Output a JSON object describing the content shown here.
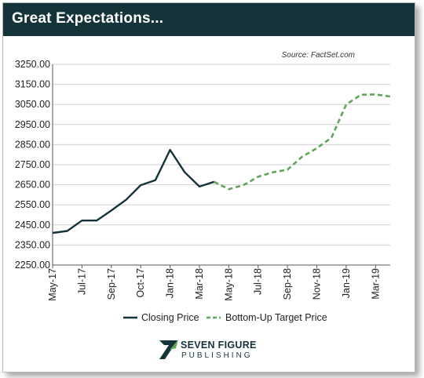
{
  "title": "Great Expectations...",
  "source": "Source: FactSet.com",
  "brand": {
    "line1": "SEVEN FIGURE",
    "line2": "PUBLISHING"
  },
  "colors": {
    "header_bg": "#15343a",
    "closing": "#15343a",
    "target": "#5fa55a"
  },
  "chart_data": {
    "type": "line",
    "ylim": [
      2250,
      3250
    ],
    "y_ticks": [
      "3250.00",
      "3150.00",
      "3050.00",
      "2950.00",
      "2850.00",
      "2750.00",
      "2650.00",
      "2550.00",
      "2450.00",
      "2350.00",
      "2250.00"
    ],
    "x_tick_labels": [
      "May-17",
      "Jul-17",
      "Sep-17",
      "Oct-17",
      "Jan-18",
      "Mar-18",
      "May-18",
      "Jul-18",
      "Sep-18",
      "Nov-18",
      "Jan-19",
      "Mar-19"
    ],
    "x_range": [
      "2017-05",
      "2019-04"
    ],
    "grid": true,
    "legend_position": "bottom",
    "series": [
      {
        "name": "Closing Price",
        "style": "solid",
        "color": "#15343a",
        "x": [
          "2017-05",
          "2017-06",
          "2017-07",
          "2017-08",
          "2017-09",
          "2017-10",
          "2017-11",
          "2017-12",
          "2018-01",
          "2018-02",
          "2018-03",
          "2018-04"
        ],
        "y": [
          2410,
          2420,
          2472,
          2472,
          2522,
          2575,
          2648,
          2673,
          2824,
          2712,
          2641,
          2665
        ]
      },
      {
        "name": "Bottom-Up Target Price",
        "style": "dashed",
        "color": "#5fa55a",
        "x": [
          "2018-04",
          "2018-05",
          "2018-06",
          "2018-07",
          "2018-08",
          "2018-09",
          "2018-10",
          "2018-11",
          "2018-12",
          "2019-01",
          "2019-02",
          "2019-03",
          "2019-04"
        ],
        "y": [
          2665,
          2628,
          2648,
          2690,
          2712,
          2725,
          2790,
          2832,
          2885,
          3050,
          3098,
          3100,
          3090
        ]
      }
    ]
  }
}
